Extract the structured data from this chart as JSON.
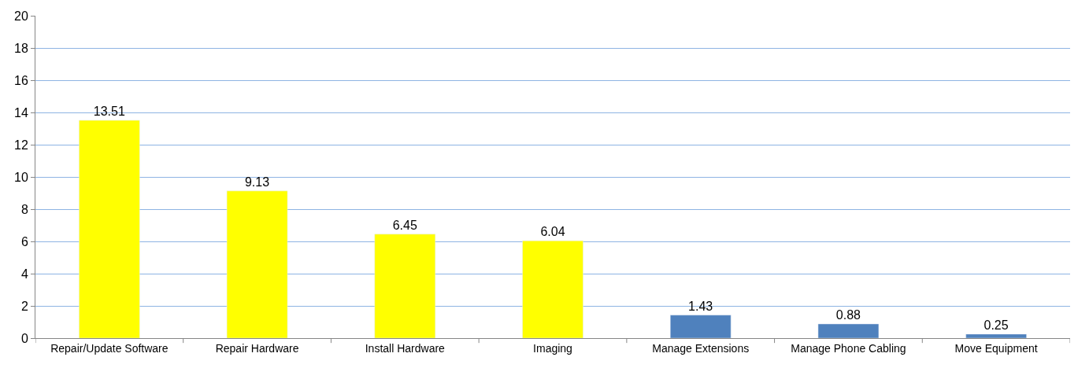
{
  "chart_data": {
    "type": "bar",
    "categories": [
      "Repair/Update Software",
      "Repair Hardware",
      "Install Hardware",
      "Imaging",
      "Manage Extensions",
      "Manage Phone Cabling",
      "Move Equipment"
    ],
    "values": [
      13.51,
      9.13,
      6.45,
      6.04,
      1.43,
      0.88,
      0.25
    ],
    "colors": [
      "#ffff00",
      "#ffff00",
      "#ffff00",
      "#ffff00",
      "#4f81bd",
      "#4f81bd",
      "#4f81bd"
    ],
    "ylim": [
      0,
      20
    ],
    "yticks": [
      0,
      2,
      4,
      6,
      8,
      10,
      12,
      14,
      16,
      18,
      20
    ],
    "grid": "y",
    "data_labels": true,
    "legend": false
  }
}
